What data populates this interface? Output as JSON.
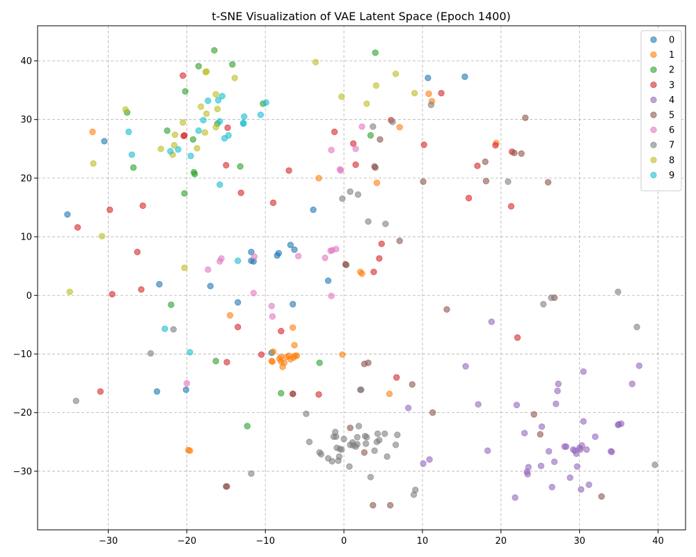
{
  "chart_data": {
    "type": "scatter",
    "title": "t-SNE Visualization of VAE Latent Space (Epoch 1400)",
    "xlabel": "",
    "ylabel": "",
    "xlim": [
      -39,
      43.5
    ],
    "ylim": [
      -40,
      46
    ],
    "xticks": [
      -30,
      -20,
      -10,
      0,
      10,
      20,
      30,
      40
    ],
    "yticks": [
      -30,
      -20,
      -10,
      0,
      10,
      20,
      30,
      40
    ],
    "grid": true,
    "legend_position": "top-right",
    "marker_alpha": 0.6,
    "series": [
      {
        "name": "0",
        "color": "#1f77b4",
        "points": [
          [
            -35.2,
            13.8
          ],
          [
            -30.5,
            26.3
          ],
          [
            -23.5,
            1.9
          ],
          [
            -23.8,
            -16.4
          ],
          [
            -20.1,
            -16.1
          ],
          [
            -17.0,
            1.6
          ],
          [
            -11.8,
            7.4
          ],
          [
            -11.5,
            5.8
          ],
          [
            -11.8,
            5.9
          ],
          [
            -8.5,
            6.8
          ],
          [
            -8.3,
            7.2
          ],
          [
            -6.8,
            8.6
          ],
          [
            -6.3,
            7.8
          ],
          [
            -6.5,
            -1.5
          ],
          [
            -3.9,
            14.6
          ],
          [
            -2.0,
            2.5
          ],
          [
            -13.5,
            -1.2
          ],
          [
            10.7,
            37.1
          ],
          [
            15.4,
            37.3
          ],
          [
            -9.2,
            -9.8
          ]
        ]
      },
      {
        "name": "1",
        "color": "#ff7f0e",
        "points": [
          [
            -32.0,
            27.9
          ],
          [
            -19.6,
            -26.5
          ],
          [
            -19.8,
            -26.4
          ],
          [
            -14.5,
            -3.4
          ],
          [
            -9.0,
            -9.6
          ],
          [
            -9.2,
            -11.2
          ],
          [
            -9.1,
            -11.3
          ],
          [
            -8.2,
            -10.8
          ],
          [
            -8.0,
            -11.3
          ],
          [
            -7.8,
            -12.2
          ],
          [
            -7.6,
            -11.5
          ],
          [
            -7.3,
            -10.5
          ],
          [
            -7.0,
            -10.3
          ],
          [
            -6.8,
            -10.9
          ],
          [
            -6.4,
            -10.6
          ],
          [
            -6.2,
            -10.3
          ],
          [
            -6.0,
            -10.3
          ],
          [
            -6.5,
            -5.5
          ],
          [
            -6.3,
            -8.5
          ],
          [
            -3.2,
            20.0
          ],
          [
            -0.2,
            -10.1
          ],
          [
            2.1,
            4.0
          ],
          [
            2.3,
            3.7
          ],
          [
            4.2,
            19.2
          ],
          [
            5.8,
            -16.8
          ],
          [
            7.1,
            28.7
          ],
          [
            10.8,
            34.4
          ],
          [
            11.2,
            33.1
          ],
          [
            19.4,
            26.0
          ],
          [
            -8.0,
            -10.5
          ]
        ]
      },
      {
        "name": "2",
        "color": "#2ca02c",
        "points": [
          [
            -27.6,
            31.2
          ],
          [
            -26.8,
            21.8
          ],
          [
            -22.5,
            28.1
          ],
          [
            -22.0,
            -1.6
          ],
          [
            -20.2,
            34.8
          ],
          [
            -20.3,
            17.4
          ],
          [
            -19.2,
            26.6
          ],
          [
            -19.1,
            21.0
          ],
          [
            -19.0,
            20.7
          ],
          [
            -18.5,
            39.1
          ],
          [
            -16.5,
            41.8
          ],
          [
            -16.3,
            -11.2
          ],
          [
            -16.1,
            29.3
          ],
          [
            -14.2,
            39.4
          ],
          [
            -13.2,
            22.0
          ],
          [
            -12.3,
            -22.3
          ],
          [
            -10.3,
            32.7
          ],
          [
            -8.0,
            -16.7
          ],
          [
            -3.1,
            -11.5
          ],
          [
            3.4,
            27.3
          ],
          [
            4.0,
            41.4
          ]
        ]
      },
      {
        "name": "3",
        "color": "#d62728",
        "points": [
          [
            -33.9,
            11.6
          ],
          [
            -31.0,
            -16.4
          ],
          [
            -29.8,
            14.6
          ],
          [
            -29.5,
            0.2
          ],
          [
            -26.3,
            7.4
          ],
          [
            -25.8,
            1.0
          ],
          [
            -25.6,
            15.3
          ],
          [
            -20.5,
            37.5
          ],
          [
            -20.3,
            27.3
          ],
          [
            -20.4,
            27.2
          ],
          [
            -15.0,
            22.2
          ],
          [
            -14.8,
            28.6
          ],
          [
            -14.9,
            -11.4
          ],
          [
            -13.5,
            -5.4
          ],
          [
            -13.1,
            17.5
          ],
          [
            -10.5,
            -10.1
          ],
          [
            -9.0,
            15.8
          ],
          [
            -8.0,
            -6.1
          ],
          [
            -7.0,
            21.3
          ],
          [
            -6.5,
            -16.8
          ],
          [
            -3.2,
            -16.9
          ],
          [
            -1.2,
            27.9
          ],
          [
            1.2,
            25.9
          ],
          [
            1.5,
            22.3
          ],
          [
            3.8,
            4.0
          ],
          [
            4.5,
            6.3
          ],
          [
            4.8,
            8.8
          ],
          [
            6.0,
            29.9
          ],
          [
            6.7,
            -14.0
          ],
          [
            10.2,
            25.7
          ],
          [
            12.4,
            34.5
          ],
          [
            15.9,
            16.6
          ],
          [
            17.0,
            22.1
          ],
          [
            19.3,
            25.6
          ],
          [
            21.4,
            24.5
          ],
          [
            21.3,
            15.2
          ],
          [
            22.1,
            -7.2
          ]
        ]
      },
      {
        "name": "4",
        "color": "#9467bd",
        "points": [
          [
            8.2,
            -19.2
          ],
          [
            10.1,
            -28.7
          ],
          [
            10.9,
            -28.0
          ],
          [
            15.5,
            -12.1
          ],
          [
            17.1,
            -18.6
          ],
          [
            18.3,
            -26.5
          ],
          [
            18.8,
            -4.5
          ],
          [
            21.8,
            -34.5
          ],
          [
            22.0,
            -18.7
          ],
          [
            23.0,
            -23.5
          ],
          [
            23.3,
            -30.1
          ],
          [
            23.4,
            -30.5
          ],
          [
            23.5,
            -29.3
          ],
          [
            25.1,
            -29.1
          ],
          [
            25.2,
            -22.4
          ],
          [
            26.1,
            -26.6
          ],
          [
            26.5,
            -32.7
          ],
          [
            26.8,
            -28.4
          ],
          [
            27.0,
            -18.5
          ],
          [
            27.2,
            -16.3
          ],
          [
            27.3,
            -15.1
          ],
          [
            28.1,
            -25.8
          ],
          [
            28.3,
            -25.8
          ],
          [
            28.8,
            -31.1
          ],
          [
            29.2,
            -26.3
          ],
          [
            29.4,
            -26.5
          ],
          [
            29.6,
            -27.0
          ],
          [
            29.7,
            -29.2
          ],
          [
            30.0,
            -26.0
          ],
          [
            30.1,
            -26.3
          ],
          [
            30.2,
            -33.1
          ],
          [
            30.3,
            -25.6
          ],
          [
            30.5,
            -13.0
          ],
          [
            30.5,
            -21.5
          ],
          [
            30.9,
            -26.3
          ],
          [
            31.2,
            -32.3
          ],
          [
            32.0,
            -24.1
          ],
          [
            34.0,
            -26.6
          ],
          [
            34.1,
            -26.7
          ],
          [
            34.9,
            -22.1
          ],
          [
            35.0,
            -22.0
          ],
          [
            35.3,
            -21.9
          ],
          [
            36.7,
            -15.1
          ],
          [
            37.6,
            -12.0
          ]
        ]
      },
      {
        "name": "5",
        "color": "#8c564b",
        "points": [
          [
            -15.0,
            -32.6
          ],
          [
            -14.9,
            -32.6
          ],
          [
            -6.5,
            -16.8
          ],
          [
            0.2,
            5.3
          ],
          [
            0.3,
            5.2
          ],
          [
            0.8,
            -22.6
          ],
          [
            2.1,
            -16.1
          ],
          [
            2.6,
            -11.7
          ],
          [
            2.6,
            -26.8
          ],
          [
            3.1,
            -11.5
          ],
          [
            3.7,
            -35.8
          ],
          [
            3.9,
            22.0
          ],
          [
            4.0,
            21.8
          ],
          [
            4.6,
            26.6
          ],
          [
            5.9,
            -35.8
          ],
          [
            7.1,
            9.3
          ],
          [
            8.7,
            -15.2
          ],
          [
            10.1,
            19.4
          ],
          [
            11.3,
            -20.0
          ],
          [
            13.1,
            -2.4
          ],
          [
            18.0,
            22.8
          ],
          [
            18.1,
            19.5
          ],
          [
            21.7,
            24.3
          ],
          [
            22.6,
            24.2
          ],
          [
            23.1,
            30.3
          ],
          [
            24.2,
            -20.3
          ],
          [
            25.0,
            -23.7
          ],
          [
            26.0,
            19.3
          ],
          [
            26.8,
            -0.4
          ],
          [
            32.8,
            -34.3
          ]
        ]
      },
      {
        "name": "6",
        "color": "#e377c2",
        "points": [
          [
            -20.0,
            -15.0
          ],
          [
            -17.3,
            4.4
          ],
          [
            -15.8,
            5.8
          ],
          [
            -15.6,
            6.3
          ],
          [
            -11.4,
            6.6
          ],
          [
            -11.5,
            0.4
          ],
          [
            -9.2,
            -1.8
          ],
          [
            -9.1,
            -3.6
          ],
          [
            -5.8,
            6.7
          ],
          [
            -2.4,
            6.4
          ],
          [
            -1.7,
            7.6
          ],
          [
            -1.6,
            24.8
          ],
          [
            -1.6,
            -0.1
          ],
          [
            -1.5,
            7.7
          ],
          [
            -1.0,
            7.9
          ],
          [
            -0.5,
            21.5
          ],
          [
            -0.4,
            21.3
          ],
          [
            1.5,
            25.0
          ],
          [
            2.3,
            28.8
          ]
        ]
      },
      {
        "name": "7",
        "color": "#7f7f7f",
        "points": [
          [
            -34.1,
            -18.0
          ],
          [
            -24.6,
            -9.9
          ],
          [
            -21.7,
            -5.8
          ],
          [
            -11.8,
            -30.4
          ],
          [
            -4.8,
            -20.2
          ],
          [
            -4.4,
            -25.0
          ],
          [
            -3.1,
            -26.8
          ],
          [
            -2.9,
            -27.1
          ],
          [
            -2.0,
            -27.8
          ],
          [
            -1.5,
            -28.3
          ],
          [
            -1.3,
            -24.1
          ],
          [
            -1.1,
            -23.3
          ],
          [
            -1.0,
            -24.1
          ],
          [
            -0.9,
            -26.0
          ],
          [
            -0.7,
            -28.2
          ],
          [
            -0.6,
            -27.5
          ],
          [
            -0.5,
            -26.2
          ],
          [
            -0.3,
            -26.3
          ],
          [
            -0.2,
            16.5
          ],
          [
            0.0,
            -24.5
          ],
          [
            0.7,
            -29.2
          ],
          [
            0.8,
            -25.5
          ],
          [
            0.8,
            17.7
          ],
          [
            1.1,
            -25.1
          ],
          [
            1.2,
            -25.6
          ],
          [
            1.5,
            -25.8
          ],
          [
            1.7,
            -25.4
          ],
          [
            1.7,
            -24.2
          ],
          [
            1.8,
            17.2
          ],
          [
            1.9,
            -22.3
          ],
          [
            2.2,
            -16.1
          ],
          [
            2.7,
            -24.0
          ],
          [
            2.8,
            -25.3
          ],
          [
            2.9,
            -24.2
          ],
          [
            3.1,
            12.6
          ],
          [
            3.4,
            -31.0
          ],
          [
            3.7,
            28.8
          ],
          [
            3.9,
            -26.5
          ],
          [
            4.2,
            -25.0
          ],
          [
            4.3,
            -23.6
          ],
          [
            4.5,
            -24.7
          ],
          [
            5.2,
            -23.6
          ],
          [
            5.3,
            12.2
          ],
          [
            5.5,
            -27.5
          ],
          [
            6.2,
            29.6
          ],
          [
            6.6,
            -25.5
          ],
          [
            6.8,
            -23.8
          ],
          [
            8.9,
            -34.0
          ],
          [
            9.1,
            -33.2
          ],
          [
            11.1,
            32.5
          ],
          [
            20.9,
            19.4
          ],
          [
            25.4,
            -1.5
          ],
          [
            26.4,
            -0.4
          ],
          [
            34.9,
            0.6
          ],
          [
            37.3,
            -5.4
          ],
          [
            39.6,
            -28.9
          ]
        ]
      },
      {
        "name": "8",
        "color": "#bcbd22",
        "points": [
          [
            -34.9,
            0.6
          ],
          [
            -31.9,
            22.5
          ],
          [
            -30.8,
            10.1
          ],
          [
            -27.8,
            31.7
          ],
          [
            -23.3,
            25.0
          ],
          [
            -21.8,
            24.0
          ],
          [
            -21.6,
            25.6
          ],
          [
            -21.5,
            27.4
          ],
          [
            -20.5,
            29.5
          ],
          [
            -20.3,
            4.7
          ],
          [
            -18.7,
            25.1
          ],
          [
            -18.2,
            32.2
          ],
          [
            -17.7,
            27.8
          ],
          [
            -17.6,
            38.1
          ],
          [
            -17.5,
            38.2
          ],
          [
            -17.5,
            31.0
          ],
          [
            -16.3,
            34.3
          ],
          [
            -16.1,
            31.8
          ],
          [
            -16.3,
            28.7
          ],
          [
            -13.9,
            37.1
          ],
          [
            -3.6,
            39.8
          ],
          [
            -0.3,
            33.9
          ],
          [
            2.9,
            32.7
          ],
          [
            4.1,
            35.8
          ],
          [
            6.6,
            37.8
          ],
          [
            9.0,
            34.5
          ]
        ]
      },
      {
        "name": "9",
        "color": "#17becf",
        "points": [
          [
            -27.4,
            27.9
          ],
          [
            -27.0,
            24.0
          ],
          [
            -22.8,
            -5.7
          ],
          [
            -22.1,
            24.6
          ],
          [
            -21.1,
            24.9
          ],
          [
            -19.5,
            23.8
          ],
          [
            -19.6,
            -9.7
          ],
          [
            -18.5,
            28.1
          ],
          [
            -17.9,
            29.9
          ],
          [
            -17.3,
            33.2
          ],
          [
            -16.0,
            33.3
          ],
          [
            -15.8,
            29.7
          ],
          [
            -15.8,
            18.9
          ],
          [
            -15.5,
            34.0
          ],
          [
            -15.2,
            26.8
          ],
          [
            -14.7,
            27.3
          ],
          [
            -13.5,
            5.9
          ],
          [
            -12.8,
            29.3
          ],
          [
            -12.8,
            29.4
          ],
          [
            -12.7,
            30.5
          ],
          [
            -10.6,
            30.8
          ],
          [
            -9.9,
            32.9
          ]
        ]
      }
    ]
  }
}
